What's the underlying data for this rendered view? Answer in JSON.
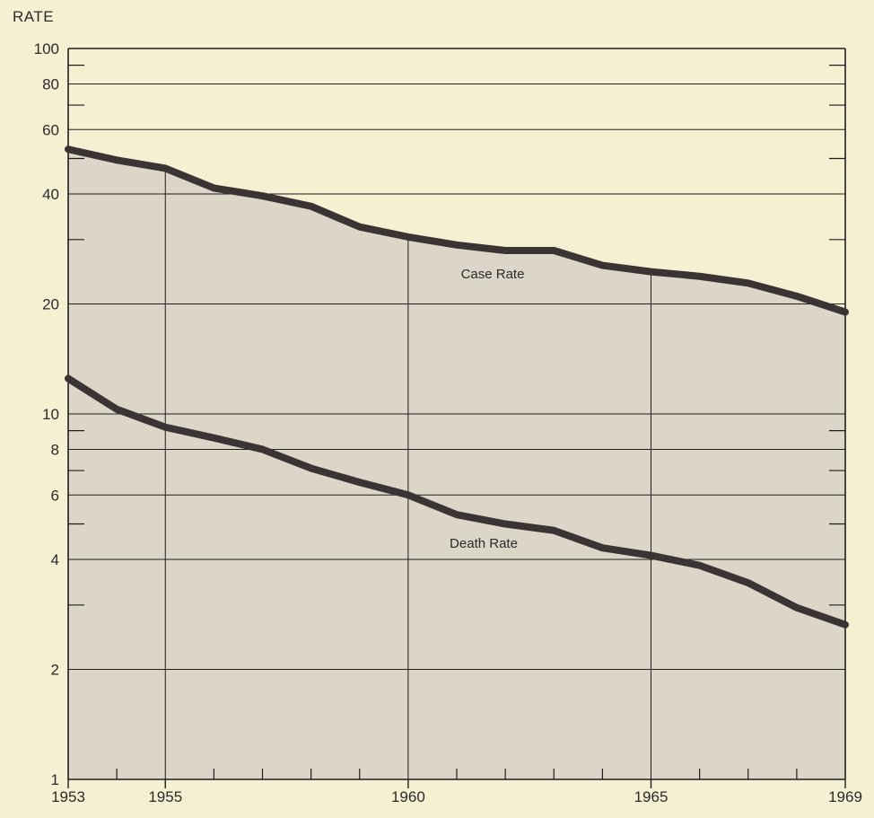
{
  "chart_data": {
    "type": "line",
    "title": "",
    "ylabel": "RATE",
    "xlabel": "",
    "y_scale": "log",
    "ylim": [
      1,
      100
    ],
    "xlim": [
      1953,
      1969
    ],
    "y_tick_labels": [
      "1",
      "2",
      "4",
      "6",
      "8",
      "10",
      "20",
      "40",
      "60",
      "80",
      "100"
    ],
    "y_tick_values": [
      1,
      2,
      4,
      6,
      8,
      10,
      20,
      40,
      60,
      80,
      100
    ],
    "y_minor_ticks": [
      3,
      30
    ],
    "x_tick_labels": [
      "1953",
      "1955",
      "1960",
      "1965",
      "1969"
    ],
    "x_tick_values": [
      1953,
      1955,
      1960,
      1965,
      1969
    ],
    "x_minor_ticks": [
      1954,
      1956,
      1957,
      1958,
      1959,
      1961,
      1962,
      1963,
      1964,
      1966,
      1967,
      1968
    ],
    "grid": true,
    "x": [
      1953,
      1954,
      1955,
      1956,
      1957,
      1958,
      1959,
      1960,
      1961,
      1962,
      1963,
      1964,
      1965,
      1966,
      1967,
      1968,
      1969
    ],
    "series": [
      {
        "name": "Case Rate",
        "values": [
          53,
          49.5,
          47,
          41.5,
          39.5,
          37,
          32.5,
          30.5,
          29,
          28,
          28,
          25.5,
          24.5,
          23.8,
          22.8,
          21,
          19
        ]
      },
      {
        "name": "Death Rate",
        "values": [
          12.5,
          10.3,
          9.2,
          8.6,
          8.0,
          7.1,
          6.5,
          6.0,
          5.3,
          5.0,
          4.8,
          4.3,
          4.1,
          3.85,
          3.45,
          2.95,
          2.65
        ]
      }
    ],
    "colors": {
      "background": "#f6f0d2",
      "fill": "#dcd6c8",
      "line": "#3b3434",
      "grid": "#1e1e1e"
    }
  }
}
